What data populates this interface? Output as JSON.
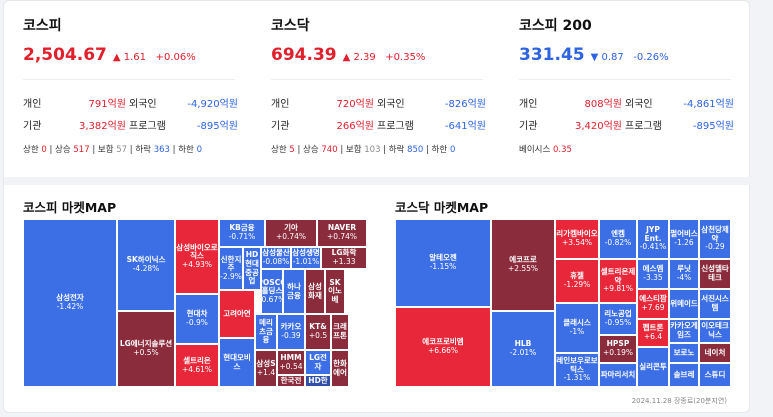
{
  "indices": [
    {
      "name": "코스피",
      "value": "2,504.67",
      "arrow": "▲",
      "change": "1.61",
      "rate": "+0.06%",
      "dir": "up",
      "rows": [
        [
          "개인",
          "791억원",
          "외국인",
          "-4,920억원"
        ],
        [
          "기관",
          "3,382억원",
          "프로그램",
          "-895억원"
        ]
      ],
      "extra": [
        [
          "상한",
          "0",
          "b"
        ],
        [
          "상승",
          "517",
          "b"
        ],
        [
          "보합",
          "57",
          "em"
        ],
        [
          "하락",
          "363",
          "i"
        ],
        [
          "하한",
          "0",
          "i"
        ]
      ]
    },
    {
      "name": "코스닥",
      "value": "694.39",
      "arrow": "▲",
      "change": "2.39",
      "rate": "+0.35%",
      "dir": "up",
      "rows": [
        [
          "개인",
          "720억원",
          "외국인",
          "-826억원"
        ],
        [
          "기관",
          "266억원",
          "프로그램",
          "-641억원"
        ]
      ],
      "extra": [
        [
          "상한",
          "5",
          "b"
        ],
        [
          "상승",
          "740",
          "b"
        ],
        [
          "보합",
          "103",
          "em"
        ],
        [
          "하락",
          "850",
          "i"
        ],
        [
          "하한",
          "0",
          "i"
        ]
      ]
    },
    {
      "name": "코스피 200",
      "value": "331.45",
      "arrow": "▼",
      "change": "0.87",
      "rate": "-0.26%",
      "dir": "dn",
      "rows": [
        [
          "개인",
          "808억원",
          "외국인",
          "-4,861억원"
        ],
        [
          "기관",
          "3,420억원",
          "프로그램",
          "-895억원"
        ]
      ],
      "extra": [
        [
          "베이시스",
          "0.35",
          "b"
        ]
      ]
    }
  ],
  "kospi_map_title": "코스피 마켓MAP",
  "kosdaq_map_title": "코스닥 마켓MAP",
  "colors": {
    "red": "#e8283a",
    "dred": "#8a2c3c",
    "blue": "#3c6ee6",
    "dblue": "#2f4fa8",
    "gray": "#666"
  },
  "kospi_cells": [
    [
      "삼성전자",
      "-1.42%",
      "blue"
    ],
    [
      "SK하이닉스",
      "-4.28%",
      "blue"
    ],
    [
      "LG에너지솔루션",
      "+0.5%",
      "dred"
    ],
    [
      "삼성바이오로직스",
      "+4.93%",
      "red"
    ],
    [
      "현대차",
      "-0.9%",
      "blue"
    ],
    [
      "셀트리온",
      "+4.61%",
      "red"
    ],
    [
      "KB금융",
      "-0.71%",
      "blue"
    ],
    [
      "기아",
      "+0.74%",
      "dred"
    ],
    [
      "NAVER",
      "+0.74%",
      "dred"
    ],
    [
      "신한지주",
      "-2.9%",
      "blue"
    ],
    [
      "HD현대중공업",
      "",
      "blue"
    ],
    [
      "삼성물산",
      "-0.08%",
      "blue"
    ],
    [
      "삼성생명",
      "-1.01%",
      "blue"
    ],
    [
      "LG화학",
      "+1.33",
      "dred"
    ],
    [
      "POSCO홀딩스",
      "-0.67%",
      "blue"
    ],
    [
      "하나금융",
      "",
      "blue"
    ],
    [
      "삼성화재",
      "",
      "dred"
    ],
    [
      "SK이노베",
      "",
      "dred"
    ],
    [
      "고려아연",
      "",
      "red"
    ],
    [
      "메리츠금융",
      "",
      "blue"
    ],
    [
      "카카오",
      "-0.39",
      "blue"
    ],
    [
      "KT&",
      "+0.5",
      "dred"
    ],
    [
      "크래프톤",
      "",
      "dred"
    ],
    [
      "HMM",
      "+0.54",
      "dred"
    ],
    [
      "LG전자",
      "",
      "blue"
    ],
    [
      "한화에어",
      "",
      "dred"
    ],
    [
      "현대모비스",
      "",
      "blue"
    ],
    [
      "삼성S",
      "+1.4",
      "dred"
    ],
    [
      "한국전",
      "",
      "dred"
    ],
    [
      "HD한",
      "",
      "dblue"
    ]
  ],
  "kosdaq_cells": [
    [
      "알테오젠",
      "-1.15%",
      "blue"
    ],
    [
      "에코프로비엠",
      "+6.66%",
      "red"
    ],
    [
      "에코프로",
      "+2.55%",
      "dred"
    ],
    [
      "HLB",
      "-2.01%",
      "blue"
    ],
    [
      "리가켐바이오",
      "+3.54%",
      "red"
    ],
    [
      "엔켐",
      "-0.82%",
      "blue"
    ],
    [
      "JYP Ent.",
      "-0.41%",
      "blue"
    ],
    [
      "펄어비스",
      "-1.26",
      "blue"
    ],
    [
      "삼천당제약",
      "-0.29",
      "blue"
    ],
    [
      "휴젤",
      "-1.29%",
      "red"
    ],
    [
      "셀트리온제약",
      "+9.81%",
      "red"
    ],
    [
      "에스엠",
      "-3.35",
      "blue"
    ],
    [
      "루닛",
      "-4%",
      "blue"
    ],
    [
      "신성델타테크",
      "",
      "dred"
    ],
    [
      "리노공업",
      "-0.95%",
      "blue"
    ],
    [
      "에스티팜",
      "+7.69",
      "red"
    ],
    [
      "위메이드",
      "",
      "blue"
    ],
    [
      "서진시스템",
      "",
      "blue"
    ],
    [
      "클래시스",
      "-1%",
      "blue"
    ],
    [
      "HPSP",
      "+0.19%",
      "dred"
    ],
    [
      "펩트론",
      "+6.4",
      "red"
    ],
    [
      "카카오게임즈",
      "",
      "blue"
    ],
    [
      "이오테크닉스",
      "",
      "blue"
    ],
    [
      "보로노",
      "",
      "blue"
    ],
    [
      "네이처",
      "",
      "dred"
    ],
    [
      "레인보우로보틱스",
      "-1.31%",
      "blue"
    ],
    [
      "파마리서치",
      "",
      "blue"
    ],
    [
      "실리콘투",
      "",
      "blue"
    ],
    [
      "솔브레",
      "",
      "blue"
    ],
    [
      "스튜디",
      "",
      "blue"
    ]
  ],
  "footer": "2024.11.28 장종료(20분지연)"
}
